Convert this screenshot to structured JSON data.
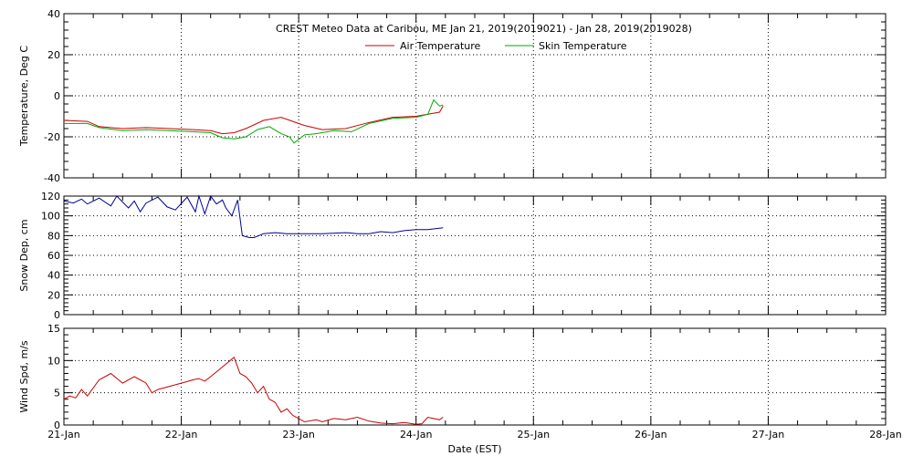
{
  "title": "CREST Meteo Data at Caribou, ME   Jan 21, 2019(2019021) - Jan 28, 2019(2019028)",
  "xlabel": "Date (EST)",
  "x_ticks": [
    "21-Jan",
    "22-Jan",
    "23-Jan",
    "24-Jan",
    "25-Jan",
    "26-Jan",
    "27-Jan",
    "28-Jan"
  ],
  "colors": {
    "air": "#cc0000",
    "skin": "#00aa00",
    "snow": "#000099",
    "wind": "#cc0000"
  },
  "chart_data": [
    {
      "type": "line",
      "ylabel": "Temperature, Deg C",
      "ylim": [
        -40,
        40
      ],
      "y_ticks": [
        -40,
        -20,
        0,
        20,
        40
      ],
      "xlim": [
        0,
        7
      ],
      "grid": true,
      "legend": "top-center",
      "series": [
        {
          "name": "Air Temperature",
          "color": "#cc0000",
          "x": [
            0,
            0.2,
            0.3,
            0.5,
            0.7,
            0.9,
            1.1,
            1.25,
            1.35,
            1.45,
            1.55,
            1.7,
            1.85,
            1.95,
            2.05,
            2.2,
            2.4,
            2.6,
            2.8,
            3.0,
            3.2,
            3.23
          ],
          "y": [
            -12,
            -12.5,
            -15,
            -16,
            -15.5,
            -16,
            -16.5,
            -17,
            -18.5,
            -18,
            -16,
            -12,
            -10.5,
            -12.5,
            -14.5,
            -16.5,
            -16,
            -13,
            -10.5,
            -10,
            -8,
            -5
          ]
        },
        {
          "name": "Skin Temperature",
          "color": "#00aa00",
          "x": [
            0,
            0.2,
            0.3,
            0.5,
            0.7,
            0.9,
            1.1,
            1.25,
            1.35,
            1.45,
            1.55,
            1.65,
            1.75,
            1.85,
            1.92,
            1.96,
            2.05,
            2.15,
            2.3,
            2.45,
            2.6,
            2.8,
            3.0,
            3.1,
            3.15,
            3.2,
            3.23
          ],
          "y": [
            -13.5,
            -13.5,
            -15.5,
            -17,
            -16.5,
            -17,
            -17.5,
            -18,
            -20.5,
            -21,
            -20,
            -16.5,
            -15,
            -18.5,
            -20,
            -23,
            -19,
            -18.5,
            -17,
            -17.5,
            -13.5,
            -11,
            -10.5,
            -9,
            -2,
            -5,
            -4.5
          ]
        }
      ]
    },
    {
      "type": "line",
      "ylabel": "Snow Dep, cm",
      "ylim": [
        0,
        120
      ],
      "y_ticks": [
        0,
        20,
        40,
        60,
        80,
        100,
        120
      ],
      "xlim": [
        0,
        7
      ],
      "grid": true,
      "series": [
        {
          "color": "#000099",
          "x": [
            0,
            0.08,
            0.15,
            0.2,
            0.3,
            0.4,
            0.45,
            0.55,
            0.6,
            0.65,
            0.7,
            0.8,
            0.88,
            0.95,
            1.05,
            1.12,
            1.15,
            1.2,
            1.25,
            1.3,
            1.35,
            1.38,
            1.43,
            1.48,
            1.52,
            1.58,
            1.62,
            1.7,
            1.8,
            1.9,
            2.0,
            2.2,
            2.4,
            2.5,
            2.6,
            2.7,
            2.8,
            2.9,
            3.0,
            3.1,
            3.23
          ],
          "y": [
            115,
            113,
            117,
            112,
            118,
            110,
            120,
            108,
            115,
            104,
            113,
            119,
            109,
            106,
            119,
            104,
            120,
            102,
            120,
            112,
            116,
            108,
            100,
            116,
            80,
            78,
            78,
            82,
            83,
            82,
            82,
            82,
            83,
            82,
            82,
            84,
            83,
            85,
            86,
            86,
            88
          ]
        }
      ]
    },
    {
      "type": "line",
      "ylabel": "Wind Spd, m/s",
      "ylim": [
        0,
        15
      ],
      "y_ticks": [
        0,
        5,
        10,
        15
      ],
      "xlim": [
        0,
        7
      ],
      "grid": true,
      "series": [
        {
          "color": "#cc0000",
          "x": [
            0,
            0.05,
            0.1,
            0.15,
            0.2,
            0.3,
            0.4,
            0.5,
            0.6,
            0.7,
            0.75,
            0.8,
            0.9,
            1.0,
            1.1,
            1.15,
            1.2,
            1.25,
            1.35,
            1.45,
            1.5,
            1.55,
            1.6,
            1.65,
            1.7,
            1.75,
            1.8,
            1.85,
            1.9,
            1.95,
            2.0,
            2.05,
            2.15,
            2.2,
            2.3,
            2.4,
            2.5,
            2.6,
            2.7,
            2.8,
            2.9,
            3.0,
            3.05,
            3.1,
            3.2,
            3.23
          ],
          "y": [
            4,
            4.5,
            4.2,
            5.5,
            4.5,
            7,
            8,
            6.5,
            7.5,
            6.5,
            5,
            5.5,
            6,
            6.5,
            7,
            7.2,
            6.8,
            7.5,
            9,
            10.5,
            8,
            7.5,
            6.5,
            5,
            6,
            4,
            3.5,
            2,
            2.5,
            1.5,
            1,
            0.5,
            0.8,
            0.5,
            1,
            0.8,
            1.2,
            0.6,
            0.3,
            0.2,
            0.4,
            0.1,
            0.2,
            1.2,
            0.8,
            1.2
          ]
        }
      ]
    }
  ]
}
